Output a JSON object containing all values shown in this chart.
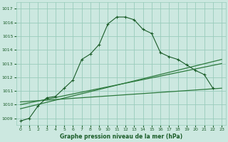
{
  "background_color": "#cce8e0",
  "grid_color": "#99ccbb",
  "dark_green": "#1a5c28",
  "mid_green": "#2d7a3e",
  "title": "Graphe pression niveau de la mer (hPa)",
  "ylim": [
    1008.5,
    1017.5
  ],
  "yticks": [
    1009,
    1010,
    1011,
    1012,
    1013,
    1014,
    1015,
    1016,
    1017
  ],
  "xticks": [
    0,
    1,
    2,
    3,
    4,
    5,
    6,
    7,
    8,
    9,
    10,
    11,
    12,
    13,
    14,
    15,
    16,
    17,
    18,
    19,
    20,
    21,
    22,
    23
  ],
  "hours": [
    0,
    1,
    2,
    3,
    4,
    5,
    6,
    7,
    8,
    9,
    10,
    11,
    12,
    13,
    14,
    15,
    16,
    17,
    18,
    19,
    20,
    21,
    22,
    23
  ],
  "main_line": [
    1008.8,
    1009.0,
    1009.9,
    1010.5,
    1010.6,
    1011.2,
    1011.8,
    1013.3,
    1013.7,
    1014.4,
    1015.9,
    1016.4,
    1016.4,
    1016.2,
    1015.5,
    1015.2,
    1013.8,
    1013.5,
    1013.3,
    1012.9,
    1012.5,
    1012.2,
    1011.2,
    null
  ],
  "line2_x": [
    0,
    23
  ],
  "line2_y": [
    1009.7,
    1013.3
  ],
  "line3_x": [
    0,
    23
  ],
  "line3_y": [
    1010.0,
    1013.0
  ],
  "line4_x": [
    0,
    23
  ],
  "line4_y": [
    1010.2,
    1011.2
  ],
  "xlim": [
    -0.5,
    23.5
  ]
}
